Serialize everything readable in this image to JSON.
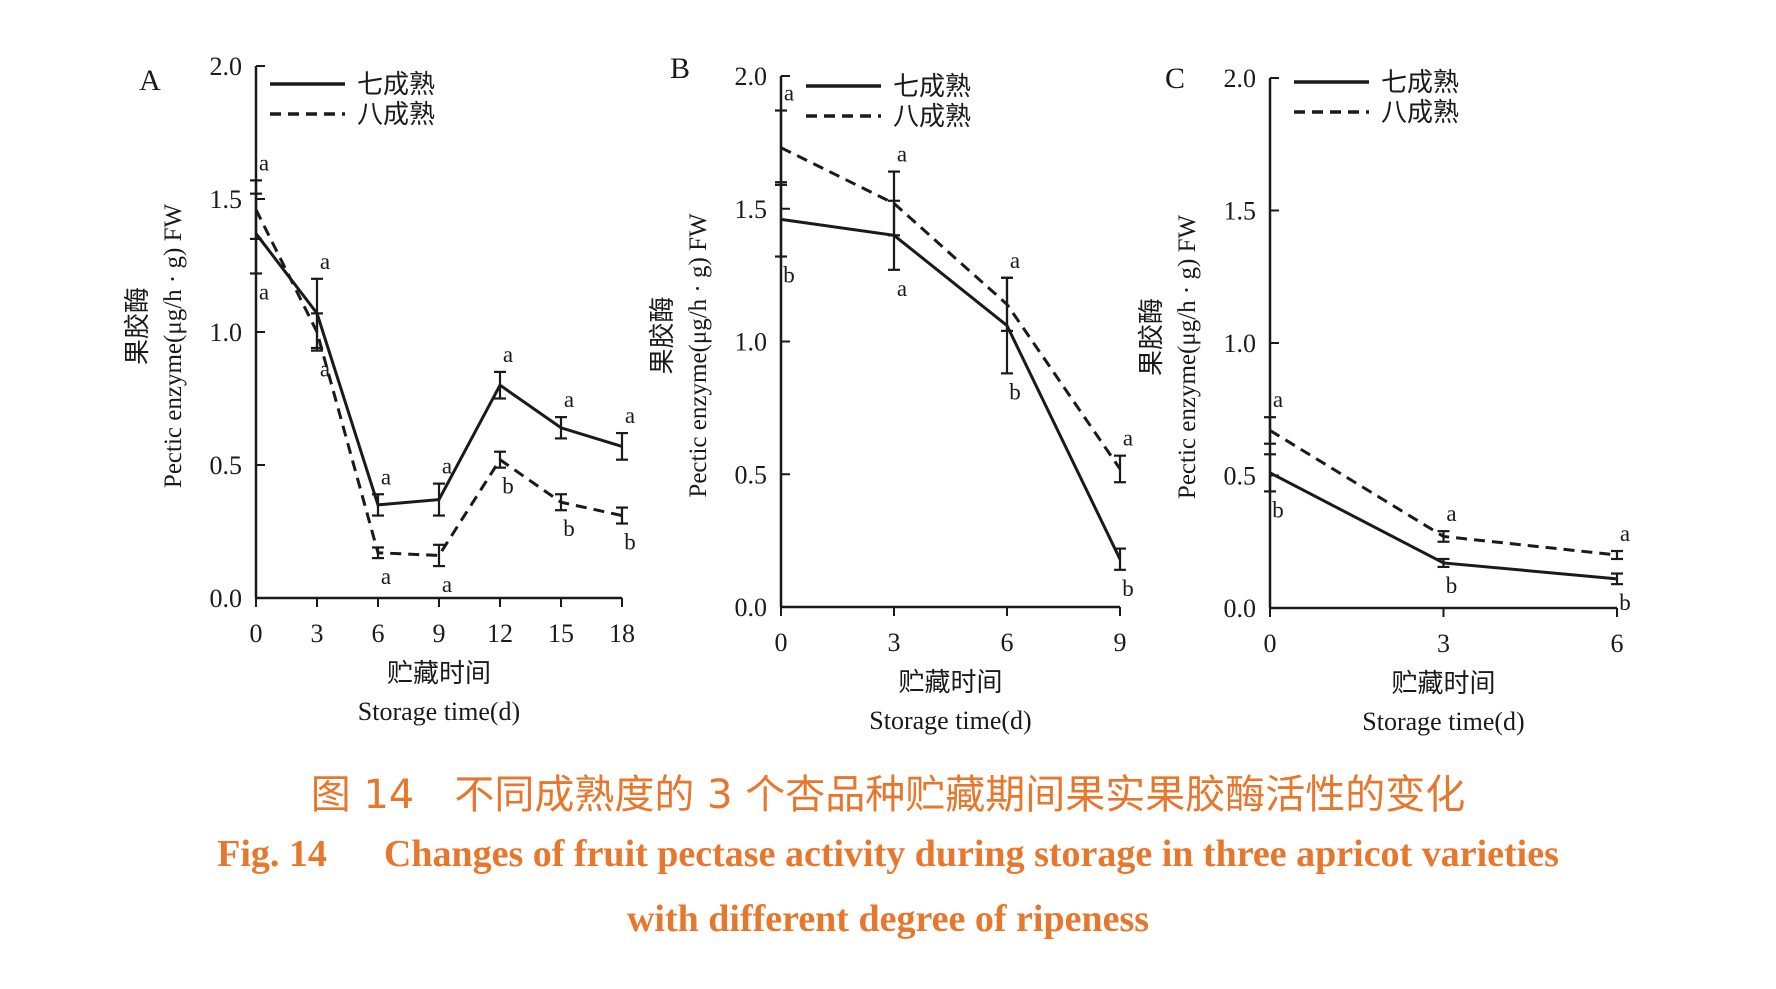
{
  "caption": {
    "cn": "图 14　不同成熟度的 3 个杏品种贮藏期间果实果胶酶活性的变化",
    "en_line1": "Fig. 14      Changes of fruit pectase activity during storage in three apricot varieties",
    "en_line2": "with different degree of ripeness"
  },
  "colors": {
    "ink": "#1a1a1a",
    "caption": "#e8772e"
  },
  "chart_data": [
    {
      "type": "line",
      "panel_label": "A",
      "xlabel_cn": "贮藏时间",
      "xlabel": "Storage time(d)",
      "ylabel_cn": "果胶酶",
      "ylabel": "Pectic enzyme(μg/h · g) FW",
      "xlim": [
        0,
        18
      ],
      "ylim": [
        0,
        2.0
      ],
      "xticks": [
        0,
        3,
        6,
        9,
        12,
        15,
        18
      ],
      "yticks": [
        0.0,
        0.5,
        1.0,
        1.5,
        2.0
      ],
      "legend_position": "top-left",
      "x": [
        0,
        3,
        6,
        9,
        12,
        15,
        18
      ],
      "series": [
        {
          "name": "七成熟",
          "style": "solid",
          "values": [
            1.37,
            1.07,
            0.35,
            0.37,
            0.8,
            0.64,
            0.57
          ],
          "errors": [
            0.15,
            0.13,
            0.04,
            0.06,
            0.05,
            0.04,
            0.05
          ],
          "labels": [
            "a",
            "a",
            "a",
            "a",
            "a",
            "a",
            "a"
          ]
        },
        {
          "name": "八成熟",
          "style": "dashed",
          "values": [
            1.46,
            1.0,
            0.17,
            0.16,
            0.52,
            0.36,
            0.31
          ],
          "errors": [
            0.11,
            0.07,
            0.02,
            0.04,
            0.03,
            0.03,
            0.03
          ],
          "labels": [
            "a",
            "a",
            "a",
            "a",
            "b",
            "b",
            "b"
          ]
        }
      ]
    },
    {
      "type": "line",
      "panel_label": "B",
      "xlabel_cn": "贮藏时间",
      "xlabel": "Storage time(d)",
      "ylabel_cn": "果胶酶",
      "ylabel": "Pectic enzyme(μg/h · g) FW",
      "xlim": [
        0,
        9
      ],
      "ylim": [
        0,
        2.0
      ],
      "xticks": [
        0,
        3,
        6,
        9
      ],
      "yticks": [
        0.0,
        0.5,
        1.0,
        1.5,
        2.0
      ],
      "legend_position": "top-left",
      "x": [
        0,
        3,
        6,
        9
      ],
      "series": [
        {
          "name": "七成熟",
          "style": "solid",
          "values": [
            1.46,
            1.4,
            1.06,
            0.18
          ],
          "errors": [
            0.14,
            0.13,
            0.18,
            0.04
          ],
          "labels": [
            "b",
            "a",
            "b",
            "b"
          ]
        },
        {
          "name": "八成熟",
          "style": "dashed",
          "values": [
            1.73,
            1.52,
            1.14,
            0.52
          ],
          "errors": [
            0.14,
            0.12,
            0.1,
            0.05
          ],
          "labels": [
            "a",
            "a",
            "a",
            "a"
          ]
        }
      ]
    },
    {
      "type": "line",
      "panel_label": "C",
      "xlabel_cn": "贮藏时间",
      "xlabel": "Storage time(d)",
      "ylabel_cn": "果胶酶",
      "ylabel": "Pectic enzyme(μg/h · g) FW",
      "xlim": [
        0,
        6
      ],
      "ylim": [
        0,
        2.0
      ],
      "xticks": [
        0,
        3,
        6
      ],
      "yticks": [
        0.0,
        0.5,
        1.0,
        1.5,
        2.0
      ],
      "legend_position": "top-left",
      "x": [
        0,
        3,
        6
      ],
      "series": [
        {
          "name": "七成熟",
          "style": "solid",
          "values": [
            0.51,
            0.17,
            0.11
          ],
          "errors": [
            0.07,
            0.015,
            0.02
          ],
          "labels": [
            "b",
            "b",
            "b"
          ]
        },
        {
          "name": "八成熟",
          "style": "dashed",
          "values": [
            0.67,
            0.27,
            0.2
          ],
          "errors": [
            0.05,
            0.02,
            0.015
          ],
          "labels": [
            "a",
            "a",
            "a"
          ]
        }
      ]
    }
  ]
}
